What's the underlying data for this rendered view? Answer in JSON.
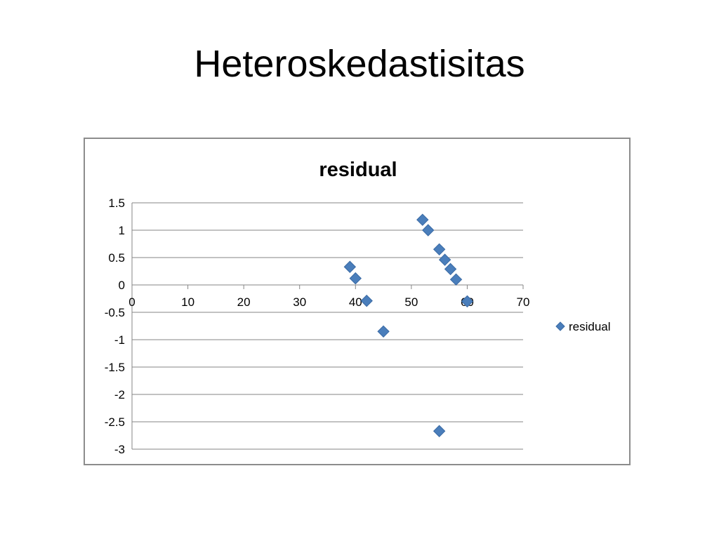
{
  "slide": {
    "title": "Heteroskedastisitas"
  },
  "colors": {
    "marker": "#4a7ebb",
    "marker_stroke": "#3a6aa4",
    "gridline": "#868686",
    "axis": "#868686",
    "text": "#000000"
  },
  "chart_data": {
    "type": "scatter",
    "title": "residual",
    "xlabel": "",
    "ylabel": "",
    "xlim": [
      0,
      70
    ],
    "ylim": [
      -3,
      1.5
    ],
    "x_ticks": [
      0,
      10,
      20,
      30,
      40,
      50,
      60,
      70
    ],
    "y_ticks": [
      1.5,
      1,
      0.5,
      0,
      -0.5,
      -1,
      -1.5,
      -2,
      -2.5,
      -3
    ],
    "grid": "horizontal",
    "legend_position": "right",
    "series": [
      {
        "name": "residual",
        "marker": "diamond",
        "points": [
          {
            "x": 39,
            "y": 0.33
          },
          {
            "x": 40,
            "y": 0.12
          },
          {
            "x": 42,
            "y": -0.29
          },
          {
            "x": 45,
            "y": -0.85
          },
          {
            "x": 52,
            "y": 1.19
          },
          {
            "x": 53,
            "y": 1.0
          },
          {
            "x": 55,
            "y": 0.65
          },
          {
            "x": 56,
            "y": 0.46
          },
          {
            "x": 57,
            "y": 0.29
          },
          {
            "x": 58,
            "y": 0.1
          },
          {
            "x": 60,
            "y": -0.3
          },
          {
            "x": 55,
            "y": -2.67
          }
        ]
      }
    ]
  }
}
